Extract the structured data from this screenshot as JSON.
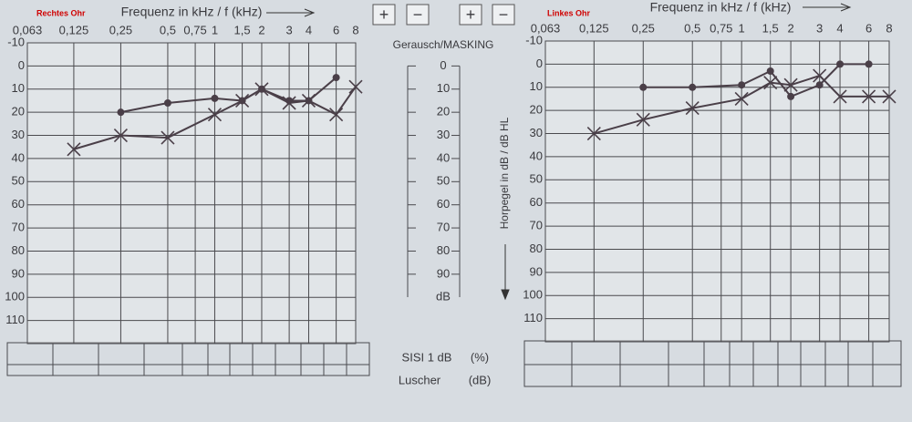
{
  "chart_data": [
    {
      "type": "line",
      "title": "Rechtes Ohr",
      "xlabel": "Frequenz in kHz / f (kHz)",
      "log_x": true,
      "xlim": [
        0.063,
        8
      ],
      "xticks": [
        {
          "value": 0.063,
          "label": "0,063"
        },
        {
          "value": 0.125,
          "label": "0,125"
        },
        {
          "value": 0.25,
          "label": "0,25"
        },
        {
          "value": 0.5,
          "label": "0,5"
        },
        {
          "value": 0.75,
          "label": "0,75"
        },
        1,
        {
          "value": 1.5,
          "label": "1,5"
        },
        2,
        3,
        4,
        6,
        8
      ],
      "ylim": [
        -10,
        120
      ],
      "yticks": [
        -10,
        0,
        10,
        20,
        30,
        40,
        50,
        60,
        70,
        80,
        90,
        100,
        110
      ],
      "grid": true,
      "series": [
        {
          "color": "#4a3f48",
          "marker": "o",
          "x": [
            0.25,
            0.5,
            1,
            1.5,
            2,
            3,
            4,
            6
          ],
          "values": [
            20,
            16,
            14,
            15,
            10,
            15,
            15,
            5
          ]
        },
        {
          "color": "#4a3f48",
          "marker": "x",
          "x": [
            0.125,
            0.25,
            0.5,
            1,
            1.5,
            2,
            3,
            4,
            6,
            8
          ],
          "values": [
            36,
            30,
            31,
            21,
            15,
            10,
            16,
            15,
            21,
            9
          ]
        }
      ]
    },
    {
      "type": "line",
      "title": "Linkes Ohr",
      "xlabel": "Frequenz in kHz / f (kHz)",
      "log_x": true,
      "xlim": [
        0.063,
        8
      ],
      "xticks": [
        {
          "value": 0.063,
          "label": "0,063"
        },
        {
          "value": 0.125,
          "label": "0,125"
        },
        {
          "value": 0.25,
          "label": "0,25"
        },
        {
          "value": 0.5,
          "label": "0,5"
        },
        {
          "value": 0.75,
          "label": "0,75"
        },
        1,
        {
          "value": 1.5,
          "label": "1,5"
        },
        2,
        3,
        4,
        6,
        8
      ],
      "ylim": [
        -10,
        120
      ],
      "yticks": [
        -10,
        0,
        10,
        20,
        30,
        40,
        50,
        60,
        70,
        80,
        90,
        100,
        110
      ],
      "grid": true,
      "series": [
        {
          "color": "#4a3f48",
          "marker": "o",
          "x": [
            0.25,
            0.5,
            1,
            1.5,
            2,
            3,
            4,
            6
          ],
          "values": [
            10,
            10,
            9,
            3,
            14,
            9,
            0,
            0
          ]
        },
        {
          "color": "#4a3f48",
          "marker": "x",
          "x": [
            0.125,
            0.25,
            0.5,
            1,
            1.5,
            2,
            3,
            4,
            6,
            8
          ],
          "values": [
            30,
            24,
            19,
            15,
            8,
            9,
            5,
            14,
            14,
            14
          ]
        }
      ]
    }
  ],
  "masking": {
    "label": "Gerausch/MASKING",
    "ticks": [
      0,
      10,
      20,
      30,
      40,
      50,
      60,
      70,
      80,
      90
    ],
    "unit": "dB",
    "axis_label": "Horpegel in dB / dB HL"
  },
  "controls": [
    "+",
    "−",
    "+",
    "−"
  ],
  "tests": [
    {
      "name": "SISI 1 dB",
      "unit": "(%)"
    },
    {
      "name": "Luscher",
      "unit": "(dB)"
    }
  ]
}
